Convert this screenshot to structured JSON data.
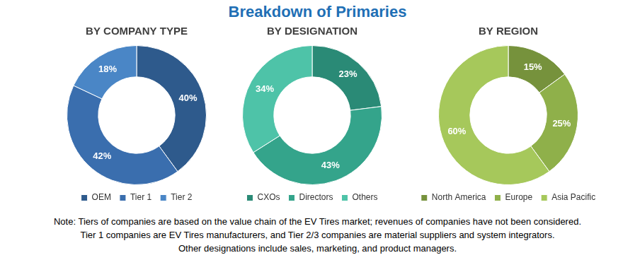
{
  "title": "Breakdown of Primaries",
  "chart_data": [
    {
      "type": "doughnut",
      "title": "BY COMPANY TYPE",
      "categories": [
        "OEM",
        "Tier 1",
        "Tier 2"
      ],
      "values": [
        40,
        42,
        18
      ],
      "value_labels": [
        "40%",
        "42%",
        "18%"
      ],
      "colors": [
        "#2e5a8c",
        "#3a6eae",
        "#4a86c6"
      ],
      "data_labels": true,
      "legend": "bottom"
    },
    {
      "type": "doughnut",
      "title": "BY DESIGNATION",
      "categories": [
        "CXOs",
        "Directors",
        "Others"
      ],
      "values": [
        23,
        43,
        34
      ],
      "value_labels": [
        "23%",
        "43%",
        "34%"
      ],
      "colors": [
        "#2a8a76",
        "#34a48b",
        "#4ec3a8"
      ],
      "data_labels": true,
      "legend": "bottom"
    },
    {
      "type": "doughnut",
      "title": "BY REGION",
      "categories": [
        "North America",
        "Europe",
        "Asia Pacific"
      ],
      "values": [
        15,
        25,
        60
      ],
      "value_labels": [
        "15%",
        "25%",
        "60%"
      ],
      "colors": [
        "#76923c",
        "#8fb04a",
        "#a6c85b"
      ],
      "data_labels": true,
      "legend": "bottom"
    }
  ],
  "note": [
    "Note: Tiers of companies are based on the value chain of the EV Tires market; revenues of companies have not been considered.",
    "Tier 1 companies are EV Tires manufacturers, and Tier 2/3 companies are material suppliers and system integrators.",
    "Other designations include sales, marketing, and product managers."
  ]
}
